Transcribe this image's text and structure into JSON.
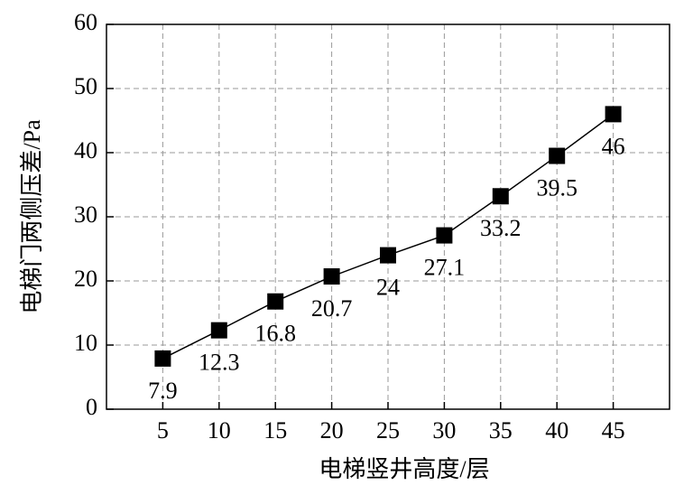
{
  "chart_data": {
    "type": "line",
    "x_label": "电梯竖井高度/层",
    "y_label": "电梯门两侧压差/Pa",
    "x": [
      5,
      10,
      15,
      20,
      25,
      30,
      35,
      40,
      45
    ],
    "series": [
      {
        "color": "#000000",
        "values": [
          7.9,
          12.3,
          16.8,
          20.7,
          24,
          27.1,
          33.2,
          39.5,
          46
        ]
      }
    ],
    "xlim": [
      0,
      50
    ],
    "xticks": [
      5,
      10,
      15,
      20,
      25,
      30,
      35,
      40,
      45
    ],
    "ylim": [
      0,
      60
    ],
    "yticks": [
      0,
      10,
      20,
      30,
      40,
      50,
      60
    ],
    "grid": true
  }
}
